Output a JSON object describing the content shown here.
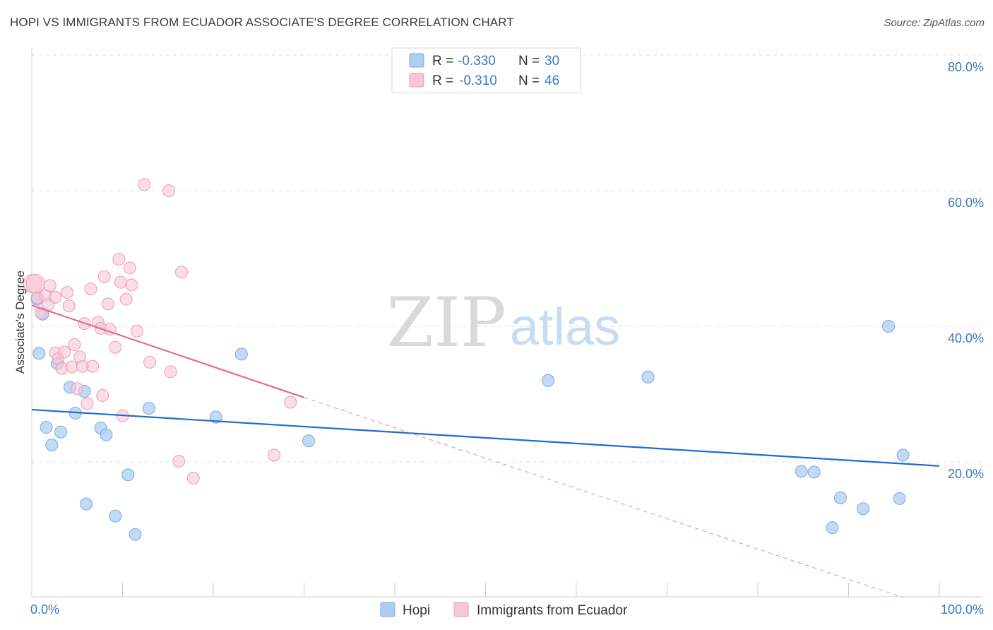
{
  "header": {
    "title": "HOPI VS IMMIGRANTS FROM ECUADOR ASSOCIATE'S DEGREE CORRELATION CHART",
    "source": "Source: ZipAtlas.com"
  },
  "watermark": {
    "zip": "ZIP",
    "atlas": "atlas"
  },
  "colors": {
    "hopi_fill": "#aecdf3",
    "hopi_stroke": "#7aa9e0",
    "hopi_line": "#1f6bd0",
    "ecuador_fill": "#f8c6d6",
    "ecuador_stroke": "#ee9ab6",
    "ecuador_line": "#e06a92",
    "value_text": "#3b78c8",
    "grid": "#e2e2e2"
  },
  "legend": {
    "hopi": {
      "r_label": "R =",
      "r_value": "-0.330",
      "n_label": "N =",
      "n_value": "30"
    },
    "ecuador": {
      "r_label": "R =",
      "r_value": "-0.310",
      "n_label": "N =",
      "n_value": "46"
    }
  },
  "chart_data": {
    "type": "scatter",
    "title": "HOPI VS IMMIGRANTS FROM ECUADOR ASSOCIATE'S DEGREE CORRELATION CHART",
    "xlabel": "",
    "ylabel": "Associate's Degree",
    "xlim": [
      0,
      100
    ],
    "ylim": [
      0,
      82
    ],
    "x_tick_labels": {
      "min": "0.0%",
      "max": "100.0%"
    },
    "y_ticks": [
      {
        "value": 20,
        "label": "20.0%"
      },
      {
        "value": 40,
        "label": "40.0%"
      },
      {
        "value": 60,
        "label": "60.0%"
      },
      {
        "value": 80,
        "label": "80.0%"
      }
    ],
    "grid": true,
    "legend_position": "bottom-center",
    "series": [
      {
        "name": "Hopi",
        "color": "#aecdf3",
        "points": [
          [
            0.6,
            44.0
          ],
          [
            0.8,
            36.0
          ],
          [
            1.2,
            41.8
          ],
          [
            1.6,
            25.1
          ],
          [
            2.2,
            22.5
          ],
          [
            2.8,
            34.5
          ],
          [
            3.2,
            24.4
          ],
          [
            4.2,
            31.0
          ],
          [
            4.8,
            27.2
          ],
          [
            5.8,
            30.4
          ],
          [
            6.0,
            13.8
          ],
          [
            7.6,
            25.0
          ],
          [
            8.2,
            24.0
          ],
          [
            9.2,
            12.0
          ],
          [
            10.6,
            18.1
          ],
          [
            11.4,
            9.3
          ],
          [
            12.9,
            27.9
          ],
          [
            20.3,
            26.6
          ],
          [
            23.1,
            35.9
          ],
          [
            30.5,
            23.1
          ],
          [
            56.9,
            32.0
          ],
          [
            67.9,
            32.5
          ],
          [
            84.8,
            18.6
          ],
          [
            86.2,
            18.5
          ],
          [
            88.2,
            10.3
          ],
          [
            89.1,
            14.7
          ],
          [
            91.6,
            13.1
          ],
          [
            94.4,
            40.0
          ],
          [
            95.6,
            14.6
          ],
          [
            96.0,
            21.0
          ]
        ],
        "trend": {
          "x0": 0,
          "y0": 27.7,
          "x1": 100,
          "y1": 19.4,
          "style": "solid"
        }
      },
      {
        "name": "Immigrants from Ecuador",
        "color": "#f8c6d6",
        "points": [
          [
            0.1,
            46.3
          ],
          [
            0.4,
            46.3
          ],
          [
            0.6,
            44.2
          ],
          [
            1.0,
            42.0
          ],
          [
            1.5,
            44.5
          ],
          [
            1.8,
            43.2
          ],
          [
            2.0,
            46.0
          ],
          [
            2.6,
            44.3
          ],
          [
            2.6,
            36.1
          ],
          [
            2.9,
            35.2
          ],
          [
            3.3,
            33.8
          ],
          [
            3.6,
            36.2
          ],
          [
            3.9,
            45.0
          ],
          [
            4.1,
            43.0
          ],
          [
            4.4,
            34.0
          ],
          [
            4.7,
            37.3
          ],
          [
            5.0,
            30.8
          ],
          [
            5.3,
            35.5
          ],
          [
            5.6,
            34.1
          ],
          [
            5.8,
            40.4
          ],
          [
            6.1,
            28.6
          ],
          [
            6.5,
            45.5
          ],
          [
            6.7,
            34.1
          ],
          [
            7.3,
            40.6
          ],
          [
            7.6,
            39.7
          ],
          [
            7.8,
            29.8
          ],
          [
            8.0,
            47.3
          ],
          [
            8.4,
            43.3
          ],
          [
            8.6,
            39.6
          ],
          [
            9.2,
            36.9
          ],
          [
            9.6,
            49.9
          ],
          [
            9.8,
            46.5
          ],
          [
            10.0,
            26.8
          ],
          [
            10.4,
            44.0
          ],
          [
            10.8,
            48.6
          ],
          [
            11.0,
            46.1
          ],
          [
            11.6,
            39.3
          ],
          [
            12.4,
            60.9
          ],
          [
            13.0,
            34.7
          ],
          [
            15.1,
            60.0
          ],
          [
            15.3,
            33.3
          ],
          [
            16.2,
            20.1
          ],
          [
            16.5,
            48.0
          ],
          [
            17.8,
            17.6
          ],
          [
            26.7,
            21.0
          ],
          [
            28.5,
            28.8
          ]
        ],
        "trend": {
          "x0": 0,
          "y0": 43.1,
          "x1": 30,
          "y1": 29.5,
          "style": "solid",
          "ext_x1": 96,
          "ext_y1": 0,
          "ext_style": "dashed"
        }
      }
    ]
  }
}
